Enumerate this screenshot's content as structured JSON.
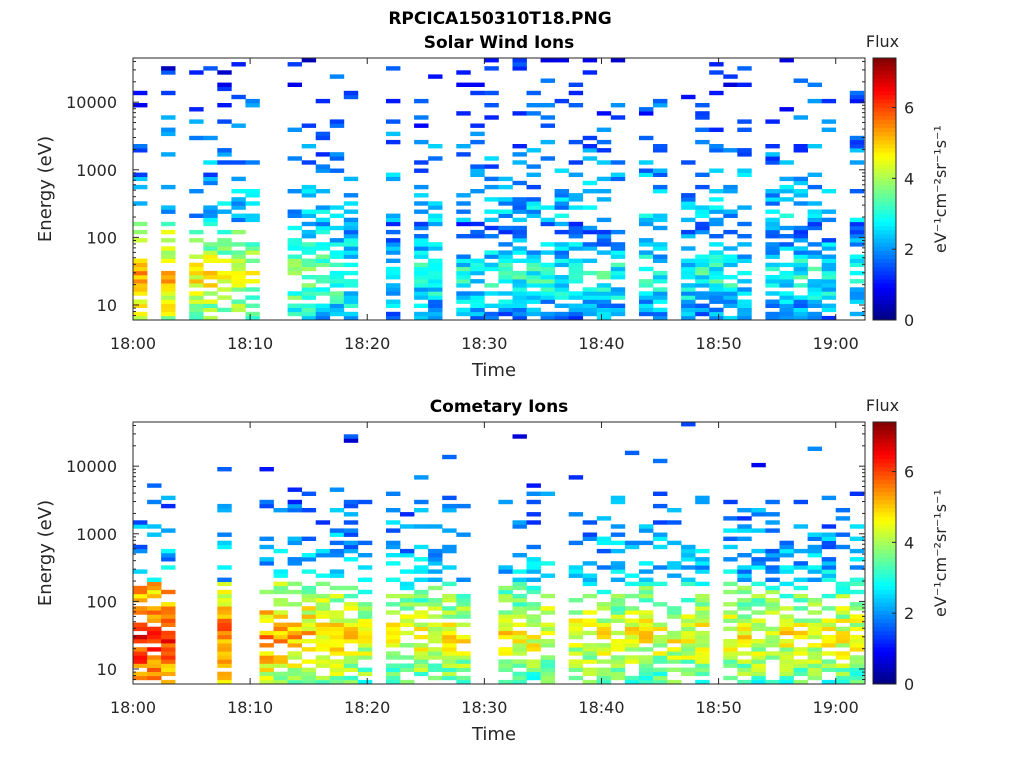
{
  "figure": {
    "title": "RPCICA150310T18.PNG"
  },
  "chart_data": [
    {
      "type": "heatmap",
      "title": "Solar Wind Ions",
      "xlabel": "Time",
      "ylabel": "Energy (eV)",
      "x_ticks": [
        "18:00",
        "18:10",
        "18:20",
        "18:30",
        "18:40",
        "18:50",
        "19:00"
      ],
      "x_range_minutes": [
        0,
        62.5
      ],
      "y_scale": "log",
      "y_range": [
        6,
        45000
      ],
      "y_ticks": [
        {
          "value": 10,
          "label": "10"
        },
        {
          "value": 100,
          "label": "100"
        },
        {
          "value": 1000,
          "label": "1000"
        },
        {
          "value": 10000,
          "label": "10000"
        }
      ],
      "colorbar": {
        "title": "Flux",
        "label": "eV⁻¹cm⁻²sr⁻¹s⁻¹",
        "range": [
          0,
          7.4
        ],
        "ticks": [
          0,
          2,
          4,
          6
        ],
        "colormap": "jet"
      },
      "profile": {
        "early_peak_energy": 25,
        "early_peak_flux": 5.4,
        "late_peak_flux": 3.0
      }
    },
    {
      "type": "heatmap",
      "title": "Cometary Ions",
      "xlabel": "Time",
      "ylabel": "Energy (eV)",
      "x_ticks": [
        "18:00",
        "18:10",
        "18:20",
        "18:30",
        "18:40",
        "18:50",
        "19:00"
      ],
      "x_range_minutes": [
        0,
        62.5
      ],
      "y_scale": "log",
      "y_range": [
        6,
        45000
      ],
      "y_ticks": [
        {
          "value": 10,
          "label": "10"
        },
        {
          "value": 100,
          "label": "100"
        },
        {
          "value": 1000,
          "label": "1000"
        },
        {
          "value": 10000,
          "label": "10000"
        }
      ],
      "colorbar": {
        "title": "Flux",
        "label": "eV⁻¹cm⁻²sr⁻¹s⁻¹",
        "range": [
          0,
          7.4
        ],
        "ticks": [
          0,
          2,
          4,
          6
        ],
        "colormap": "jet"
      },
      "profile": {
        "early_peak_energy": 30,
        "early_peak_flux": 6.4,
        "late_peak_flux": 4.6
      }
    }
  ]
}
